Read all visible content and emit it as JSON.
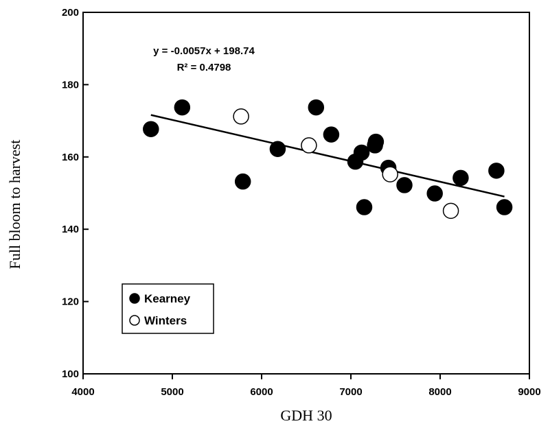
{
  "chart_data": {
    "type": "scatter",
    "xlabel": "GDH 30",
    "ylabel": "Full bloom to harvest",
    "xlim": [
      4000,
      9000
    ],
    "ylim": [
      100,
      200
    ],
    "xticks": [
      4000,
      5000,
      6000,
      7000,
      8000,
      9000
    ],
    "yticks": [
      100,
      120,
      140,
      160,
      180,
      200
    ],
    "grid": false,
    "legend_position": "bottom-left",
    "series": [
      {
        "name": "Kearney",
        "marker": "filled-circle",
        "color": "#000000",
        "points": [
          {
            "x": 4760,
            "y": 167.7
          },
          {
            "x": 5110,
            "y": 173.7
          },
          {
            "x": 5790,
            "y": 153.2
          },
          {
            "x": 6180,
            "y": 162.2
          },
          {
            "x": 6610,
            "y": 173.7
          },
          {
            "x": 6780,
            "y": 166.2
          },
          {
            "x": 7050,
            "y": 158.7
          },
          {
            "x": 7120,
            "y": 161.2
          },
          {
            "x": 7150,
            "y": 146.1
          },
          {
            "x": 7270,
            "y": 163.2
          },
          {
            "x": 7280,
            "y": 164.2
          },
          {
            "x": 7420,
            "y": 157.0
          },
          {
            "x": 7600,
            "y": 152.2
          },
          {
            "x": 7940,
            "y": 149.9
          },
          {
            "x": 8230,
            "y": 154.2
          },
          {
            "x": 8630,
            "y": 156.2
          },
          {
            "x": 8720,
            "y": 146.1
          }
        ]
      },
      {
        "name": "Winters",
        "marker": "open-circle",
        "color": "#000000",
        "points": [
          {
            "x": 5770,
            "y": 171.2
          },
          {
            "x": 6530,
            "y": 163.2
          },
          {
            "x": 7440,
            "y": 155.2
          },
          {
            "x": 8120,
            "y": 145.1
          }
        ]
      }
    ],
    "trendline": {
      "slope": -0.0057,
      "intercept": 198.74,
      "x_range": [
        4760,
        8720
      ],
      "equation": "y = -0.0057x + 198.74",
      "r_squared": "R² = 0.4798"
    }
  }
}
